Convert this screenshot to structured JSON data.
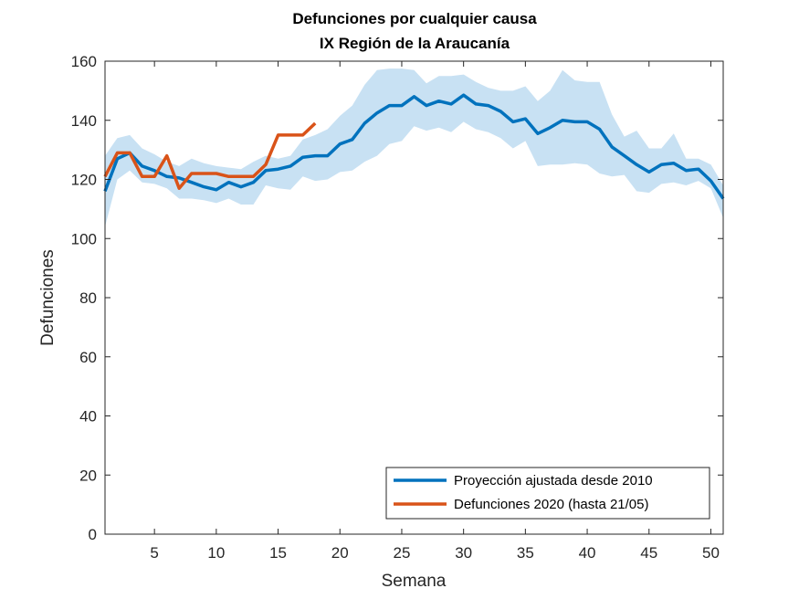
{
  "chart_data": {
    "type": "line",
    "title": "Defunciones por cualquier causa",
    "subtitle": "IX Región de la Araucanía",
    "xlabel": "Semana",
    "ylabel": "Defunciones",
    "xlim": [
      1,
      51
    ],
    "ylim": [
      0,
      160
    ],
    "xticks": [
      5,
      10,
      15,
      20,
      25,
      30,
      35,
      40,
      45,
      50
    ],
    "yticks": [
      0,
      20,
      40,
      60,
      80,
      100,
      120,
      140,
      160
    ],
    "grid": false,
    "legend_position": "bottom-right",
    "band": {
      "x": [
        1,
        2,
        3,
        4,
        5,
        6,
        7,
        8,
        9,
        10,
        11,
        12,
        13,
        14,
        15,
        16,
        17,
        18,
        19,
        20,
        21,
        22,
        23,
        24,
        25,
        26,
        27,
        28,
        29,
        30,
        31,
        32,
        33,
        34,
        35,
        36,
        37,
        38,
        39,
        40,
        41,
        42,
        43,
        44,
        45,
        46,
        47,
        48,
        49,
        50,
        51
      ],
      "lower": [
        104,
        120,
        123,
        119,
        118.5,
        117,
        113.5,
        113.5,
        113,
        112,
        113.5,
        111.5,
        111.5,
        118,
        117,
        116.5,
        121,
        119.5,
        120,
        122.5,
        123,
        126,
        128,
        132,
        133,
        138,
        136.5,
        137.5,
        136,
        139.5,
        137,
        136,
        134,
        130.5,
        133,
        124.5,
        125,
        125,
        125.5,
        125,
        122,
        121,
        121.5,
        116,
        115.5,
        118.5,
        119,
        118,
        119.5,
        117,
        107
      ],
      "upper": [
        128,
        134,
        135,
        130.5,
        128.5,
        126,
        124.5,
        127,
        125.5,
        124.5,
        124,
        123.5,
        126,
        128,
        127,
        128,
        133.5,
        135,
        137,
        141.5,
        145,
        152,
        157,
        157.5,
        157.5,
        157,
        152.5,
        155,
        155,
        155.5,
        153,
        151,
        150,
        150,
        151.5,
        146.5,
        150,
        157,
        153.5,
        153,
        153,
        142,
        134.5,
        136.5,
        130.5,
        130.5,
        135.5,
        127,
        127,
        125,
        118
      ],
      "color": "#c8e1f3"
    },
    "series": [
      {
        "name": "Proyección ajustada desde 2010",
        "color": "#0072BD",
        "x": [
          1,
          2,
          3,
          4,
          5,
          6,
          7,
          8,
          9,
          10,
          11,
          12,
          13,
          14,
          15,
          16,
          17,
          18,
          19,
          20,
          21,
          22,
          23,
          24,
          25,
          26,
          27,
          28,
          29,
          30,
          31,
          32,
          33,
          34,
          35,
          36,
          37,
          38,
          39,
          40,
          41,
          42,
          43,
          44,
          45,
          46,
          47,
          48,
          49,
          50,
          51
        ],
        "values": [
          116,
          127,
          129,
          124.5,
          123,
          121,
          120.5,
          119,
          117.5,
          116.5,
          119,
          117.5,
          119,
          123,
          123.5,
          124.5,
          127.5,
          128,
          128,
          132,
          133.5,
          139,
          142.5,
          145,
          145,
          148,
          145,
          146.5,
          145.5,
          148.5,
          145.5,
          145,
          143,
          139.5,
          140.5,
          135.5,
          137.5,
          140,
          139.5,
          139.5,
          137,
          131,
          128,
          125,
          122.5,
          125,
          125.5,
          123,
          123.5,
          119.5,
          113.5
        ]
      },
      {
        "name": "Defunciones 2020 (hasta 21/05)",
        "color": "#D95319",
        "x": [
          1,
          2,
          3,
          4,
          5,
          6,
          7,
          8,
          9,
          10,
          11,
          12,
          13,
          14,
          15,
          16,
          17,
          18
        ],
        "values": [
          121,
          129,
          129,
          121,
          121,
          128,
          117,
          122,
          122,
          122,
          121,
          121,
          121,
          125,
          135,
          135,
          135,
          139
        ]
      }
    ]
  }
}
